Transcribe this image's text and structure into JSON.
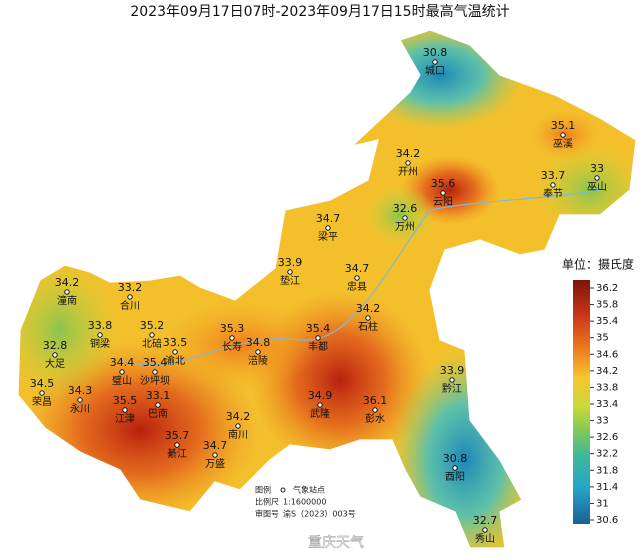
{
  "title": "2023年09月17日07时-2023年09月17日15时最高气温统计",
  "stations": [
    {
      "name": "城口",
      "value": 30.8
    },
    {
      "name": "巫溪",
      "value": 35.1
    },
    {
      "name": "开州",
      "value": 34.2
    },
    {
      "name": "云阳",
      "value": 35.6
    },
    {
      "name": "奉节",
      "value": 33.7
    },
    {
      "name": "巫山",
      "value": 33
    },
    {
      "name": "万州",
      "value": 32.6
    },
    {
      "name": "梁平",
      "value": 34.7
    },
    {
      "name": "垫江",
      "value": 33.9
    },
    {
      "name": "忠县",
      "value": 34.7
    },
    {
      "name": "石柱",
      "value": 34.2
    },
    {
      "name": "潼南",
      "value": 34.2
    },
    {
      "name": "合川",
      "value": 33.2
    },
    {
      "name": "铜梁",
      "value": 33.8
    },
    {
      "name": "北碚",
      "value": 35.2
    },
    {
      "name": "渝北",
      "value": 33.5
    },
    {
      "name": "长寿",
      "value": 35.3
    },
    {
      "name": "涪陵",
      "value": 34.8
    },
    {
      "name": "丰都",
      "value": 35.4
    },
    {
      "name": "大足",
      "value": 32.8
    },
    {
      "name": "璧山",
      "value": 34.4
    },
    {
      "name": "沙坪坝",
      "value": 35.4
    },
    {
      "name": "荣昌",
      "value": 34.5
    },
    {
      "name": "永川",
      "value": 34.3
    },
    {
      "name": "江津",
      "value": 35.5
    },
    {
      "name": "巴南",
      "value": 33.1
    },
    {
      "name": "黔江",
      "value": 33.9
    },
    {
      "name": "武隆",
      "value": 34.9
    },
    {
      "name": "彭水",
      "value": 36.1
    },
    {
      "name": "南川",
      "value": 34.2
    },
    {
      "name": "綦江",
      "value": 35.7
    },
    {
      "name": "万盛",
      "value": 34.7
    },
    {
      "name": "酉阳",
      "value": 30.8
    },
    {
      "name": "秀山",
      "value": 32.7
    }
  ],
  "legend": {
    "title": "单位：摄氏度",
    "ticks": [
      36.2,
      35.8,
      35.4,
      35,
      34.6,
      34.2,
      33.8,
      33.4,
      33,
      32.6,
      32.2,
      31.8,
      31.4,
      31,
      30.6
    ]
  },
  "footer": {
    "legend_label": "图例",
    "legend_item": "气象站点",
    "scale_label": "比例尺",
    "scale": "1:1600000",
    "approval_label": "审图号",
    "approval": "渝S（2023）003号"
  },
  "watermark": "重庆天气"
}
